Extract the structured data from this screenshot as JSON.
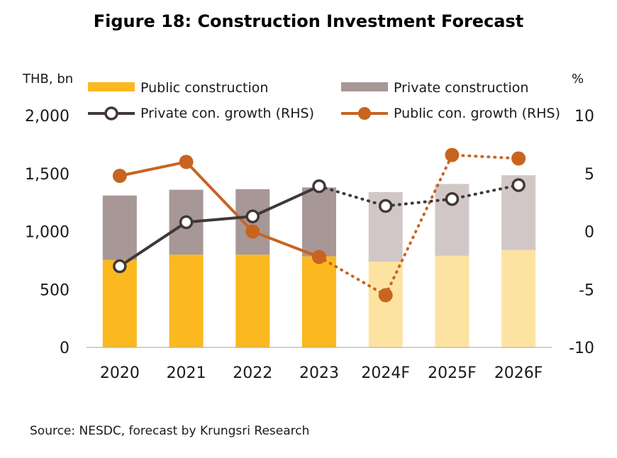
{
  "title": "Figure 18: Construction Investment Forecast",
  "source": "Source: NESDC, forecast by Krungsri Research",
  "chart_data": {
    "type": "bar",
    "title": "Figure 18: Construction Investment Forecast",
    "categories": [
      "2020",
      "2021",
      "2022",
      "2023",
      "2024F",
      "2025F",
      "2026F"
    ],
    "forecast_from_index": 4,
    "left_axis": {
      "unit_label": "THB, bn",
      "ylim": [
        0,
        2000
      ],
      "ticks": [
        "0",
        "500",
        "1,000",
        "1,500",
        "2,000"
      ],
      "tick_values": [
        0,
        500,
        1000,
        1500,
        2000
      ]
    },
    "right_axis": {
      "unit_label": "%",
      "ylim": [
        -10,
        10
      ],
      "ticks": [
        "-10",
        "-5",
        "0",
        "5",
        "10"
      ],
      "tick_values": [
        -10,
        -5,
        0,
        5,
        10
      ]
    },
    "grid": false,
    "legend_placement": "top",
    "series": [
      {
        "name": "Public construction",
        "type": "stacked-bar",
        "axis": "left",
        "values": [
          755,
          800,
          800,
          785,
          740,
          790,
          840
        ],
        "color": "#FBB91F",
        "forecast_color": "#FDE3A1"
      },
      {
        "name": "Private construction",
        "type": "stacked-bar",
        "axis": "left",
        "values": [
          555,
          560,
          565,
          595,
          600,
          620,
          645
        ],
        "color": "#A89797",
        "forecast_color": "#D2C7C7"
      },
      {
        "name": "Private con. growth (RHS)",
        "type": "line",
        "axis": "right",
        "values": [
          -3.0,
          0.8,
          1.3,
          3.9,
          2.2,
          2.8,
          4.0
        ],
        "color": "#403838",
        "marker": "hollow-circle"
      },
      {
        "name": "Public con. growth (RHS)",
        "type": "line",
        "axis": "right",
        "values": [
          4.8,
          6.0,
          0.0,
          -2.2,
          -5.5,
          6.6,
          6.3
        ],
        "color": "#C86420",
        "marker": "filled-circle"
      }
    ]
  }
}
